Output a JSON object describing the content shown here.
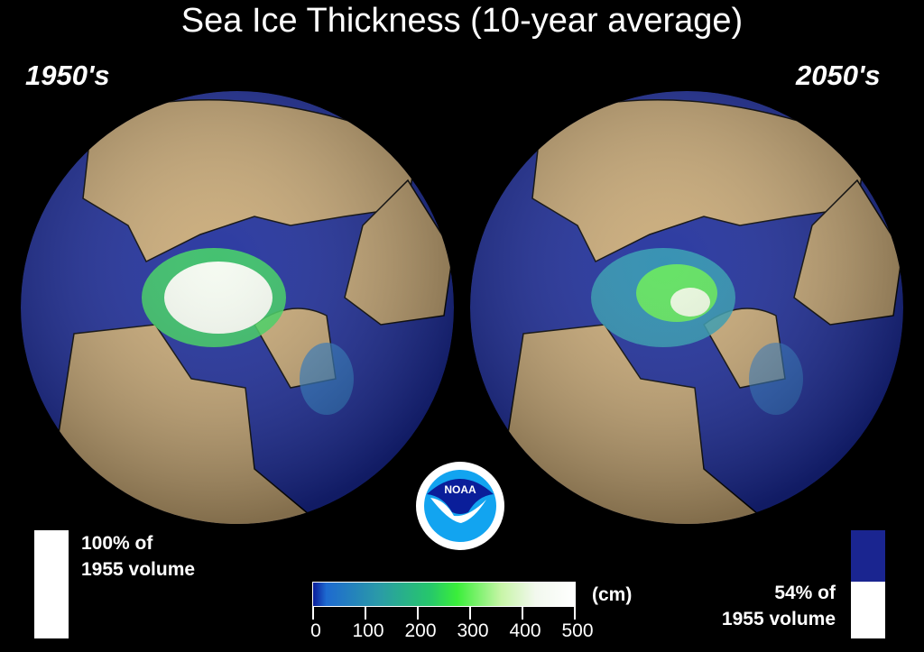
{
  "title": "Sea Ice Thickness (10-year average)",
  "left_panel": {
    "label": "1950's",
    "volume_text_line1": "100% of",
    "volume_text_line2": "1955 volume",
    "volume_fraction": 1.0
  },
  "right_panel": {
    "label": "2050's",
    "volume_text_line1": "54% of",
    "volume_text_line2": "1955 volume",
    "volume_fraction": 0.54
  },
  "logo": {
    "text": "NOAA"
  },
  "colorbar": {
    "unit": "(cm)",
    "ticks": [
      "0",
      "100",
      "200",
      "300",
      "400",
      "500"
    ]
  },
  "colors": {
    "ocean": "#1a2a9a",
    "land": "#c8a874",
    "volume_lost": "#1a2590",
    "volume_kept": "#ffffff"
  }
}
